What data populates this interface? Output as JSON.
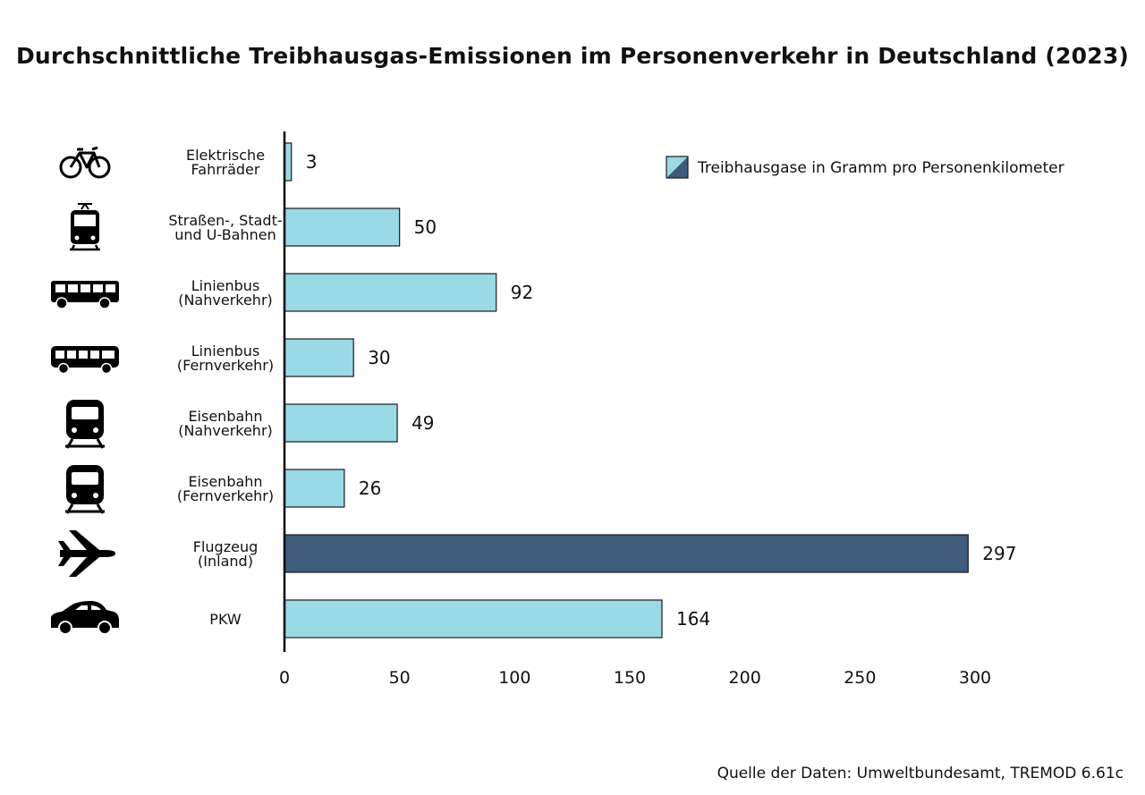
{
  "chart_data": {
    "type": "bar",
    "orientation": "horizontal",
    "title": "Durchschnittliche Treibhausgas-Emissionen im Personenverkehr in Deutschland (2023)",
    "source": "Quelle der Daten: Umweltbundesamt, TREMOD 6.61c",
    "legend": {
      "label": "Treibhausgase in Gramm pro Personenkilometer",
      "position": "top-right"
    },
    "xlim": [
      0,
      300
    ],
    "xticks": [
      0,
      50,
      100,
      150,
      200,
      250,
      300
    ],
    "categories": [
      {
        "lines": [
          "Elektrische",
          "Fahrräder"
        ],
        "value": 3,
        "icon": "bicycle-icon",
        "highlight": false
      },
      {
        "lines": [
          "Straßen-, Stadt-",
          "und U-Bahnen"
        ],
        "value": 50,
        "icon": "tram-icon",
        "highlight": false
      },
      {
        "lines": [
          "Linienbus",
          "(Nahverkehr)"
        ],
        "value": 92,
        "icon": "city-bus-icon",
        "highlight": false
      },
      {
        "lines": [
          "Linienbus",
          "(Fernverkehr)"
        ],
        "value": 30,
        "icon": "coach-bus-icon",
        "highlight": false
      },
      {
        "lines": [
          "Eisenbahn",
          "(Nahverkehr)"
        ],
        "value": 49,
        "icon": "regional-train-icon",
        "highlight": false
      },
      {
        "lines": [
          "Eisenbahn",
          "(Fernverkehr)"
        ],
        "value": 26,
        "icon": "long-distance-train-icon",
        "highlight": false
      },
      {
        "lines": [
          "Flugzeug",
          "(Inland)"
        ],
        "value": 297,
        "icon": "airplane-icon",
        "highlight": true
      },
      {
        "lines": [
          "PKW"
        ],
        "value": 164,
        "icon": "car-icon",
        "highlight": false
      }
    ],
    "colors": {
      "bar": "#9ad9e6",
      "highlight": "#405c7d",
      "outline": "#1a1a1a"
    }
  }
}
